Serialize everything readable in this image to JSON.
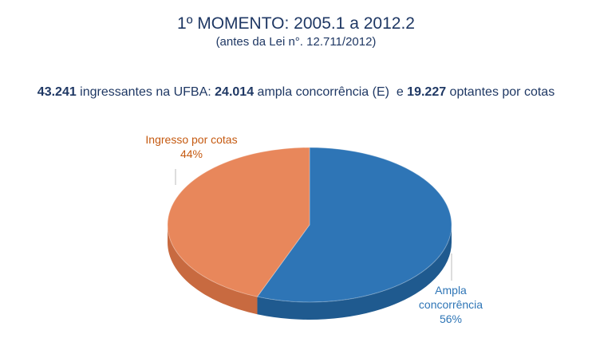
{
  "chart_data": {
    "type": "pie3d",
    "title": "1º MOMENTO: 2005.1 a 2012.2",
    "subtitle": "(antes da Lei n°. 12.711/2012)",
    "summary": [
      {
        "text": "43.241",
        "bold": true
      },
      {
        "text": " ingressantes na UFBA: ",
        "bold": false
      },
      {
        "text": "24.014",
        "bold": true
      },
      {
        "text": " ampla concorrência (E)  e ",
        "bold": false
      },
      {
        "text": "19.227",
        "bold": true
      },
      {
        "text": " optantes por cotas",
        "bold": false
      }
    ],
    "categories": [
      "Ampla concorrência",
      "Ingresso por cotas"
    ],
    "values": [
      56,
      44
    ],
    "value_labels": [
      "56%",
      "44%"
    ],
    "colors": [
      "#2e75b6",
      "#e8875b"
    ],
    "side_colors": [
      "#1f5a8f",
      "#c86a40"
    ],
    "label_colors": [
      "#2e75b6",
      "#c55a11"
    ]
  }
}
